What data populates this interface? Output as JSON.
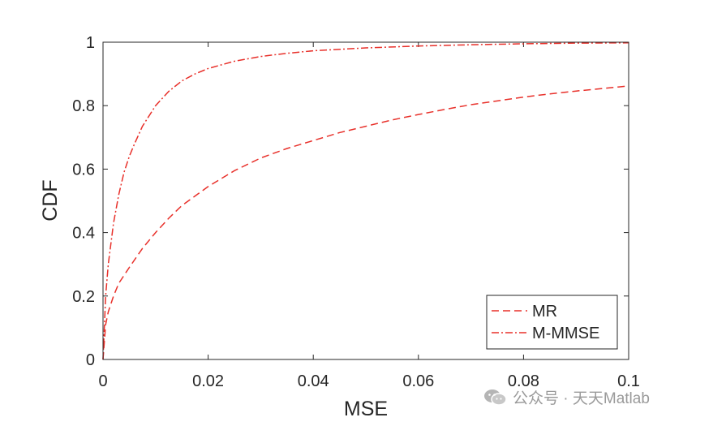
{
  "chart_data": {
    "type": "line",
    "xlabel": "MSE",
    "ylabel": "CDF",
    "xlim": [
      0,
      0.1
    ],
    "ylim": [
      0,
      1
    ],
    "xticks": [
      "0",
      "0.02",
      "0.04",
      "0.06",
      "0.08",
      "0.1"
    ],
    "yticks": [
      "0",
      "0.2",
      "0.4",
      "0.6",
      "0.8",
      "1"
    ],
    "grid": false,
    "legend_position": "bottom-right",
    "series": [
      {
        "name": "MR",
        "style": "dashed",
        "color": "#e8302a",
        "x": [
          0,
          0.0005,
          0.001,
          0.002,
          0.003,
          0.005,
          0.0075,
          0.01,
          0.0125,
          0.015,
          0.0175,
          0.02,
          0.025,
          0.03,
          0.035,
          0.04,
          0.045,
          0.05,
          0.055,
          0.06,
          0.065,
          0.07,
          0.075,
          0.08,
          0.085,
          0.09,
          0.095,
          0.1
        ],
        "y": [
          0,
          0.11,
          0.15,
          0.2,
          0.24,
          0.29,
          0.35,
          0.4,
          0.445,
          0.485,
          0.515,
          0.545,
          0.595,
          0.635,
          0.665,
          0.69,
          0.715,
          0.735,
          0.755,
          0.772,
          0.788,
          0.803,
          0.815,
          0.827,
          0.837,
          0.846,
          0.854,
          0.862
        ]
      },
      {
        "name": "M-MMSE",
        "style": "dashdot",
        "color": "#e8302a",
        "x": [
          0,
          0.0005,
          0.001,
          0.002,
          0.003,
          0.004,
          0.005,
          0.006,
          0.0075,
          0.01,
          0.0125,
          0.015,
          0.0175,
          0.02,
          0.025,
          0.03,
          0.035,
          0.04,
          0.05,
          0.06,
          0.07,
          0.08,
          0.09,
          0.1
        ],
        "y": [
          0,
          0.2,
          0.3,
          0.43,
          0.52,
          0.59,
          0.64,
          0.68,
          0.735,
          0.8,
          0.845,
          0.878,
          0.9,
          0.917,
          0.94,
          0.955,
          0.965,
          0.973,
          0.982,
          0.988,
          0.992,
          0.995,
          0.997,
          0.998
        ]
      }
    ]
  },
  "watermark": {
    "icon": "wechat-icon",
    "text": "公众号 · 天天Matlab"
  }
}
